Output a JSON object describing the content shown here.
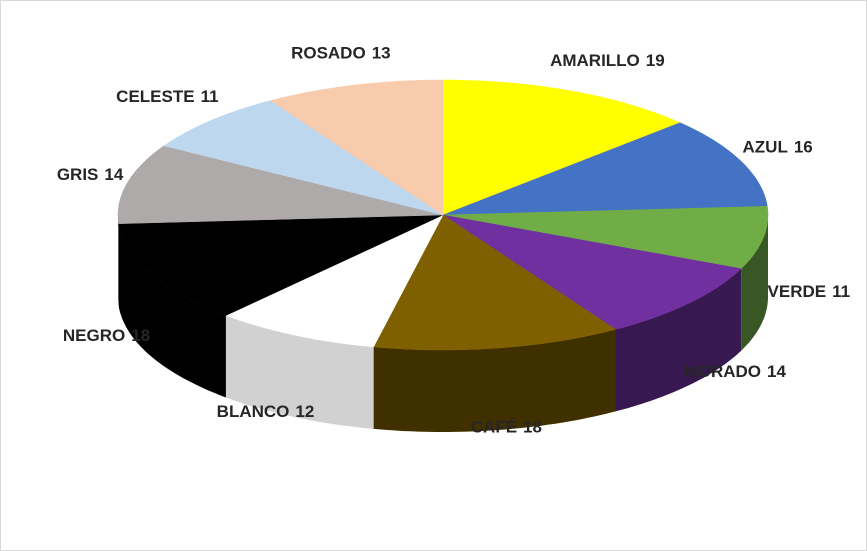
{
  "chart_data": {
    "type": "pie",
    "three_d": true,
    "categories": [
      "AMARILLO",
      "AZUL",
      "VERDE",
      "MORADO",
      "CAFÉ",
      "BLANCO",
      "NEGRO",
      "GRIS",
      "CELESTE",
      "ROSADO"
    ],
    "values": [
      19,
      16,
      11,
      14,
      18,
      12,
      18,
      14,
      11,
      13
    ],
    "colors": [
      "#ffff00",
      "#4472c4",
      "#70ad47",
      "#7030a0",
      "#7f6000",
      "#ffffff",
      "#000000",
      "#aeaaaa",
      "#bdd7ee",
      "#f8cbad"
    ]
  }
}
